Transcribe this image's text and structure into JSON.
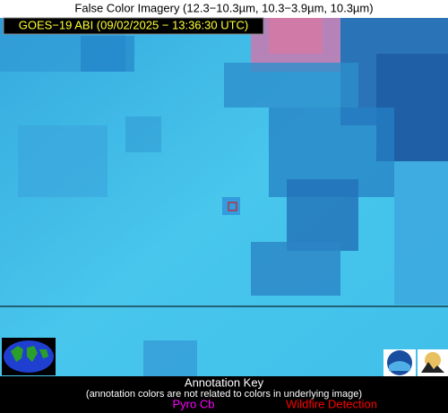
{
  "header": {
    "title": "False Color Imagery (12.3−10.3µm, 10.3−3.9µm, 10.3µm)"
  },
  "overlay": {
    "label": "GOES−19 ABI (09/02/2025 − 13:36:30 UTC)"
  },
  "key": {
    "title": "Annotation Key",
    "note": "(annotation colors are not related to colors in underlying image)",
    "items": [
      "Pyro Cb",
      "Wildfire Detection"
    ]
  }
}
